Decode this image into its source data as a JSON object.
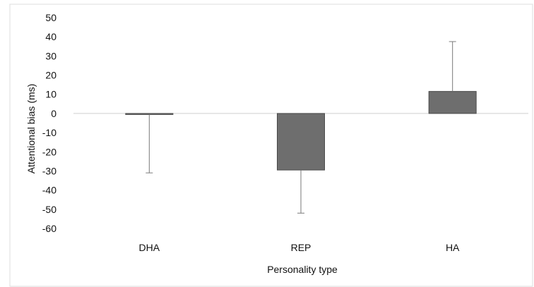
{
  "chart_data": {
    "type": "bar",
    "title": "",
    "xlabel": "Personality type",
    "ylabel": "Attentional bias (ms)",
    "categories": [
      "DHA",
      "REP",
      "HA"
    ],
    "values": [
      -0.5,
      -29.5,
      11.5
    ],
    "error_bars": [
      {
        "direction": "down",
        "endpoint": -31
      },
      {
        "direction": "down",
        "endpoint": -52
      },
      {
        "direction": "up",
        "endpoint": 37.5
      }
    ],
    "ylim": [
      -60,
      50
    ],
    "yticks": [
      "50",
      "40",
      "30",
      "20",
      "10",
      "0",
      "-10",
      "-20",
      "-30",
      "-40",
      "-50",
      "-60"
    ],
    "grid": false,
    "legend": "none",
    "colors": {
      "bar": "#6e6e6e",
      "bar_border": "#4a4a4a",
      "error": "#7a7a7a",
      "zero_line": "#cfcfcf",
      "frame": "#dddddd"
    }
  }
}
